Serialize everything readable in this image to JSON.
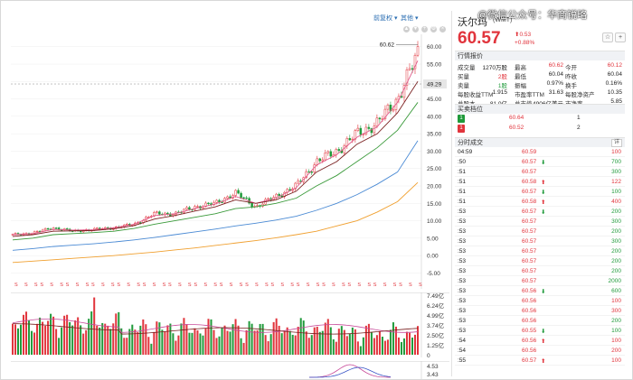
{
  "toolbar": {
    "adjust_label": "前复权 ▾",
    "other_label": "其他 ▾"
  },
  "stock": {
    "name": "沃尔玛",
    "code": "(WMT)",
    "price": "60.57",
    "change_abs": "⬆0.53",
    "change_pct": "+0.88%",
    "star": "☆",
    "plus": "+"
  },
  "watermark": "@微信公众号：华商锐略",
  "sections": {
    "quote": "行情报价",
    "orderbook": "买卖档位",
    "trades": "分时成交",
    "detail": "详"
  },
  "quote_rows": [
    [
      [
        "成交量",
        "lbl"
      ],
      [
        "1270万股",
        "blk"
      ],
      [
        "最高",
        "lbl"
      ],
      [
        "60.62",
        "red"
      ],
      [
        "今开",
        "lbl"
      ],
      [
        "60.12",
        "red"
      ]
    ],
    [
      [
        "买量",
        "lbl"
      ],
      [
        "2股",
        "red"
      ],
      [
        "最低",
        "lbl"
      ],
      [
        "60.04",
        "blk"
      ],
      [
        "昨收",
        "lbl"
      ],
      [
        "60.04",
        "blk"
      ]
    ],
    [
      [
        "卖量",
        "lbl"
      ],
      [
        "1股",
        "green"
      ],
      [
        "振幅",
        "lbl"
      ],
      [
        "0.97%",
        "blk"
      ],
      [
        "换手",
        "lbl"
      ],
      [
        "0.16%",
        "blk"
      ]
    ],
    [
      [
        "每股收益TTM",
        "lbl"
      ],
      [
        "1.915",
        "blk"
      ],
      [
        "市盈率TTM",
        "lbl"
      ],
      [
        "31.63",
        "blk"
      ],
      [
        "每股净资产",
        "lbl"
      ],
      [
        "10.35",
        "blk"
      ]
    ],
    [
      [
        "总股本",
        "lbl"
      ],
      [
        "81.0亿",
        "blk"
      ],
      [
        "总市值",
        "lbl"
      ],
      [
        "4906亿美元",
        "blk"
      ],
      [
        "市净率",
        "lbl"
      ],
      [
        "5.85",
        "blk"
      ]
    ]
  ],
  "orderbook": [
    {
      "tag": "1",
      "tag_color": "#1f9a3a",
      "price": "60.64",
      "vol": "1"
    },
    {
      "tag": "1",
      "tag_color": "#e1343c",
      "price": "60.52",
      "vol": "2"
    }
  ],
  "trades": [
    {
      "t": "04:59",
      "p": "60.59",
      "pc": "red",
      "a": "",
      "v": "100",
      "vc": "red"
    },
    {
      "t": ":50",
      "p": "60.57",
      "pc": "red",
      "a": "⬇",
      "v": "700",
      "vc": "green"
    },
    {
      "t": ":51",
      "p": "60.57",
      "pc": "red",
      "a": "",
      "v": "300",
      "vc": "green"
    },
    {
      "t": ":51",
      "p": "60.58",
      "pc": "red",
      "a": "⬆",
      "v": "122",
      "vc": "red"
    },
    {
      "t": ":51",
      "p": "60.57",
      "pc": "red",
      "a": "⬇",
      "v": "100",
      "vc": "green"
    },
    {
      "t": ":51",
      "p": "60.58",
      "pc": "red",
      "a": "⬆",
      "v": "400",
      "vc": "red"
    },
    {
      "t": ":53",
      "p": "60.57",
      "pc": "red",
      "a": "⬇",
      "v": "200",
      "vc": "green"
    },
    {
      "t": ":53",
      "p": "60.57",
      "pc": "red",
      "a": "",
      "v": "300",
      "vc": "green"
    },
    {
      "t": ":53",
      "p": "60.57",
      "pc": "red",
      "a": "",
      "v": "200",
      "vc": "green"
    },
    {
      "t": ":53",
      "p": "60.57",
      "pc": "red",
      "a": "",
      "v": "300",
      "vc": "green"
    },
    {
      "t": ":53",
      "p": "60.57",
      "pc": "red",
      "a": "",
      "v": "200",
      "vc": "green"
    },
    {
      "t": ":53",
      "p": "60.57",
      "pc": "red",
      "a": "",
      "v": "200",
      "vc": "green"
    },
    {
      "t": ":53",
      "p": "60.57",
      "pc": "red",
      "a": "",
      "v": "200",
      "vc": "green"
    },
    {
      "t": ":53",
      "p": "60.57",
      "pc": "red",
      "a": "",
      "v": "2000",
      "vc": "green"
    },
    {
      "t": ":53",
      "p": "60.56",
      "pc": "red",
      "a": "⬇",
      "v": "600",
      "vc": "green"
    },
    {
      "t": ":53",
      "p": "60.56",
      "pc": "red",
      "a": "",
      "v": "100",
      "vc": "red"
    },
    {
      "t": ":53",
      "p": "60.56",
      "pc": "red",
      "a": "",
      "v": "300",
      "vc": "red"
    },
    {
      "t": ":53",
      "p": "60.56",
      "pc": "red",
      "a": "",
      "v": "200",
      "vc": "green"
    },
    {
      "t": ":53",
      "p": "60.55",
      "pc": "red",
      "a": "⬇",
      "v": "100",
      "vc": "green"
    },
    {
      "t": ":54",
      "p": "60.56",
      "pc": "red",
      "a": "⬆",
      "v": "100",
      "vc": "red"
    },
    {
      "t": ":54",
      "p": "60.56",
      "pc": "red",
      "a": "",
      "v": "200",
      "vc": "red"
    },
    {
      "t": ":55",
      "p": "60.57",
      "pc": "red",
      "a": "⬆",
      "v": "100",
      "vc": "red"
    }
  ],
  "chart_data": [
    {
      "type": "candlestick",
      "yticks": [
        "60.00",
        "55.00",
        "50.00",
        "45.00",
        "40.00",
        "35.00",
        "30.00",
        "25.00",
        "20.00",
        "15.00",
        "10.00",
        "5.00",
        "0.00",
        "-5.00"
      ],
      "ylim": [
        -8,
        62
      ],
      "high_label": "60.62",
      "last_price_label": "49.29",
      "dividend_marker": "S",
      "trend": {
        "x": [
          0,
          5,
          10,
          15,
          20,
          25,
          30,
          35,
          40,
          45,
          50,
          55,
          60,
          65,
          70,
          75,
          80,
          85,
          90,
          95,
          100
        ],
        "close": [
          6,
          6.5,
          8,
          7,
          7.5,
          8,
          9,
          12,
          12,
          14,
          15,
          18,
          14,
          17,
          20,
          27,
          30,
          35,
          38,
          45,
          58
        ]
      },
      "ma_lines": [
        {
          "color": "#e05a8a",
          "y": [
            6,
            6.3,
            7.5,
            7.3,
            7.4,
            8,
            9,
            11.5,
            12,
            13.5,
            14.8,
            17,
            15,
            16.5,
            19.5,
            26,
            29,
            34,
            37,
            44,
            56
          ]
        },
        {
          "color": "#7a2020",
          "y": [
            5.5,
            6,
            7,
            7.1,
            7.2,
            7.7,
            8.6,
            10.5,
            11.5,
            12.8,
            14,
            16,
            15,
            16,
            18.5,
            24,
            27,
            32,
            35,
            41,
            50
          ]
        },
        {
          "color": "#3a9a3a",
          "y": [
            4.5,
            5,
            6,
            6.3,
            6.6,
            7,
            7.8,
            9,
            10,
            11,
            12,
            13.5,
            14,
            15,
            16.5,
            20,
            23,
            27,
            31,
            36,
            44
          ]
        },
        {
          "color": "#4a8ad4",
          "y": [
            1.5,
            2,
            2.6,
            3,
            3.4,
            3.9,
            4.5,
            5.2,
            6,
            6.8,
            7.6,
            8.5,
            9.3,
            10.2,
            11.3,
            13,
            15,
            17.5,
            20.5,
            24,
            33
          ]
        },
        {
          "color": "#f0a030",
          "y": [
            -2,
            -1.6,
            -1.2,
            -0.8,
            -0.4,
            0,
            0.5,
            1,
            1.6,
            2.2,
            2.9,
            3.6,
            4.3,
            5.1,
            6,
            7,
            8.5,
            10,
            12.5,
            15.5,
            21
          ]
        }
      ]
    },
    {
      "type": "bar",
      "yticks": [
        "7.49亿",
        "6.24亿",
        "4.99亿",
        "3.74亿",
        "2.50亿",
        "1.25亿",
        "0"
      ],
      "ylim": [
        0,
        7.49
      ]
    },
    {
      "type": "line",
      "yticks": [
        "4.53",
        "3.43"
      ]
    }
  ]
}
